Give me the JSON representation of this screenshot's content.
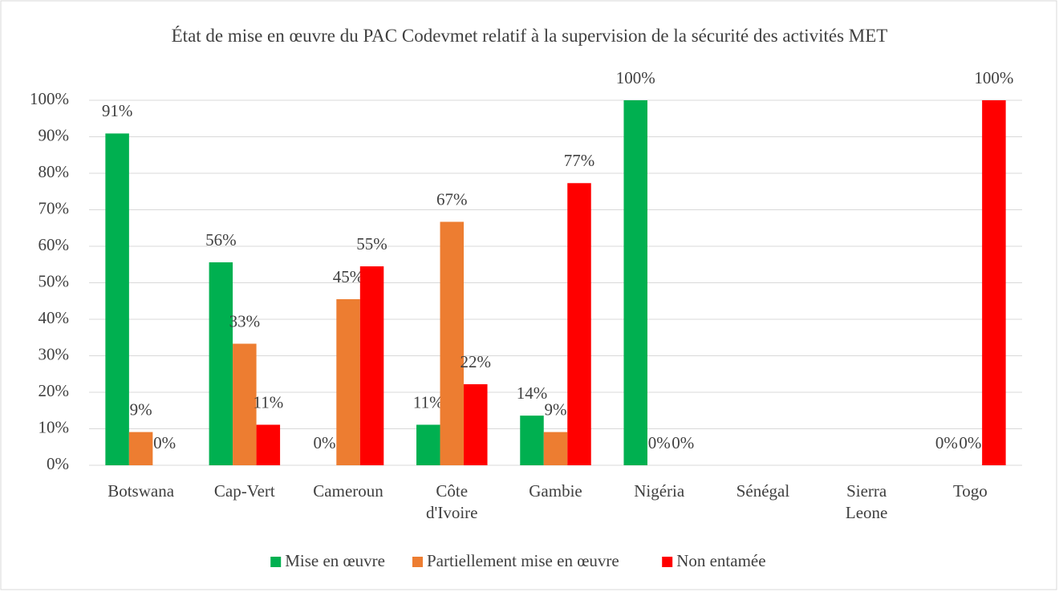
{
  "chart_data": {
    "type": "bar",
    "title": "État de mise en œuvre du PAC Codevmet relatif à la supervision de la sécurité des activités MET",
    "categories": [
      "Botswana",
      "Cap-Vert",
      "Cameroun",
      "Côte d'Ivoire",
      "Gambie",
      "Nigéria",
      "Sénégal",
      "Sierra Leone",
      "Togo"
    ],
    "series": [
      {
        "name": "Mise en œuvre",
        "color": "#00b050",
        "values": [
          90.9,
          55.6,
          0,
          11.1,
          13.6,
          100,
          null,
          null,
          0
        ],
        "value_labels": [
          "91%",
          "56%",
          "0%",
          "11%",
          "14%",
          "100%",
          null,
          null,
          "0%"
        ]
      },
      {
        "name": "Partiellement mise en œuvre",
        "color": "#ed7d31",
        "values": [
          9.1,
          33.3,
          45.5,
          66.7,
          9.1,
          0,
          null,
          null,
          0
        ],
        "value_labels": [
          "9%",
          "33%",
          "45%",
          "67%",
          "9%",
          "0%",
          null,
          null,
          "0%"
        ]
      },
      {
        "name": "Non entamée",
        "color": "#ff0000",
        "values": [
          0,
          11.1,
          54.5,
          22.2,
          77.3,
          0,
          null,
          null,
          100
        ],
        "value_labels": [
          "0%",
          "11%",
          "55%",
          "22%",
          "77%",
          "0%",
          null,
          null,
          "100%"
        ]
      }
    ],
    "ylim": [
      0,
      100
    ],
    "yticks": [
      {
        "value": 0,
        "label": "0%"
      },
      {
        "value": 10,
        "label": "10%"
      },
      {
        "value": 20,
        "label": "20%"
      },
      {
        "value": 30,
        "label": "30%"
      },
      {
        "value": 40,
        "label": "40%"
      },
      {
        "value": 50,
        "label": "50%"
      },
      {
        "value": 60,
        "label": "60%"
      },
      {
        "value": 70,
        "label": "70%"
      },
      {
        "value": 80,
        "label": "80%"
      },
      {
        "value": 90,
        "label": "90%"
      },
      {
        "value": 100,
        "label": "100%"
      }
    ],
    "grid": true,
    "legend": "bottom"
  }
}
